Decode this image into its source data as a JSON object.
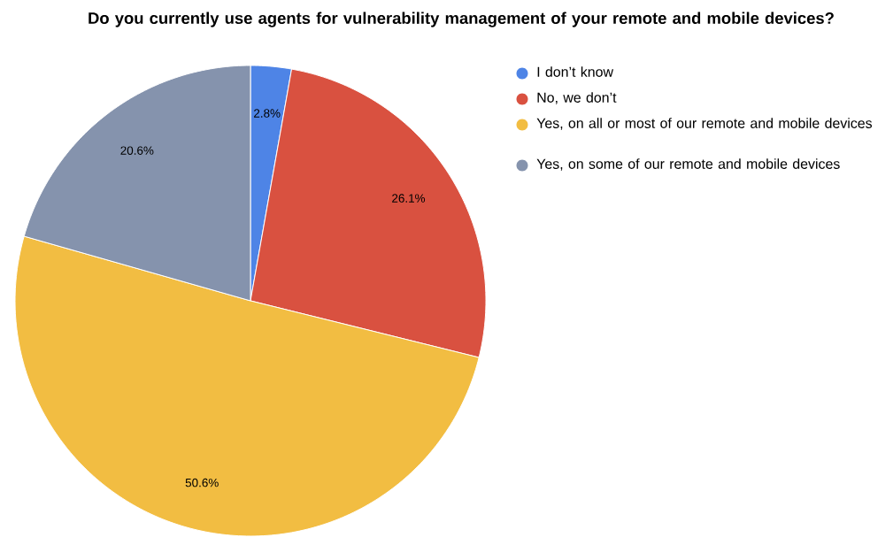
{
  "chart_data": {
    "type": "pie",
    "title": "Do you currently use agents for vulnerability management of your remote and mobile devices?",
    "categories": [
      "I don’t know",
      "No, we don’t",
      "Yes, on all or most of our remote and mobile devices",
      "Yes, on some of our remote and mobile devices"
    ],
    "values": [
      2.8,
      26.1,
      50.6,
      20.6
    ],
    "value_labels": [
      "2.8%",
      "26.1%",
      "50.6%",
      "20.6%"
    ],
    "colors": [
      "#4e84e6",
      "#d95140",
      "#f2bd42",
      "#8593ad"
    ],
    "legend": "top right"
  }
}
